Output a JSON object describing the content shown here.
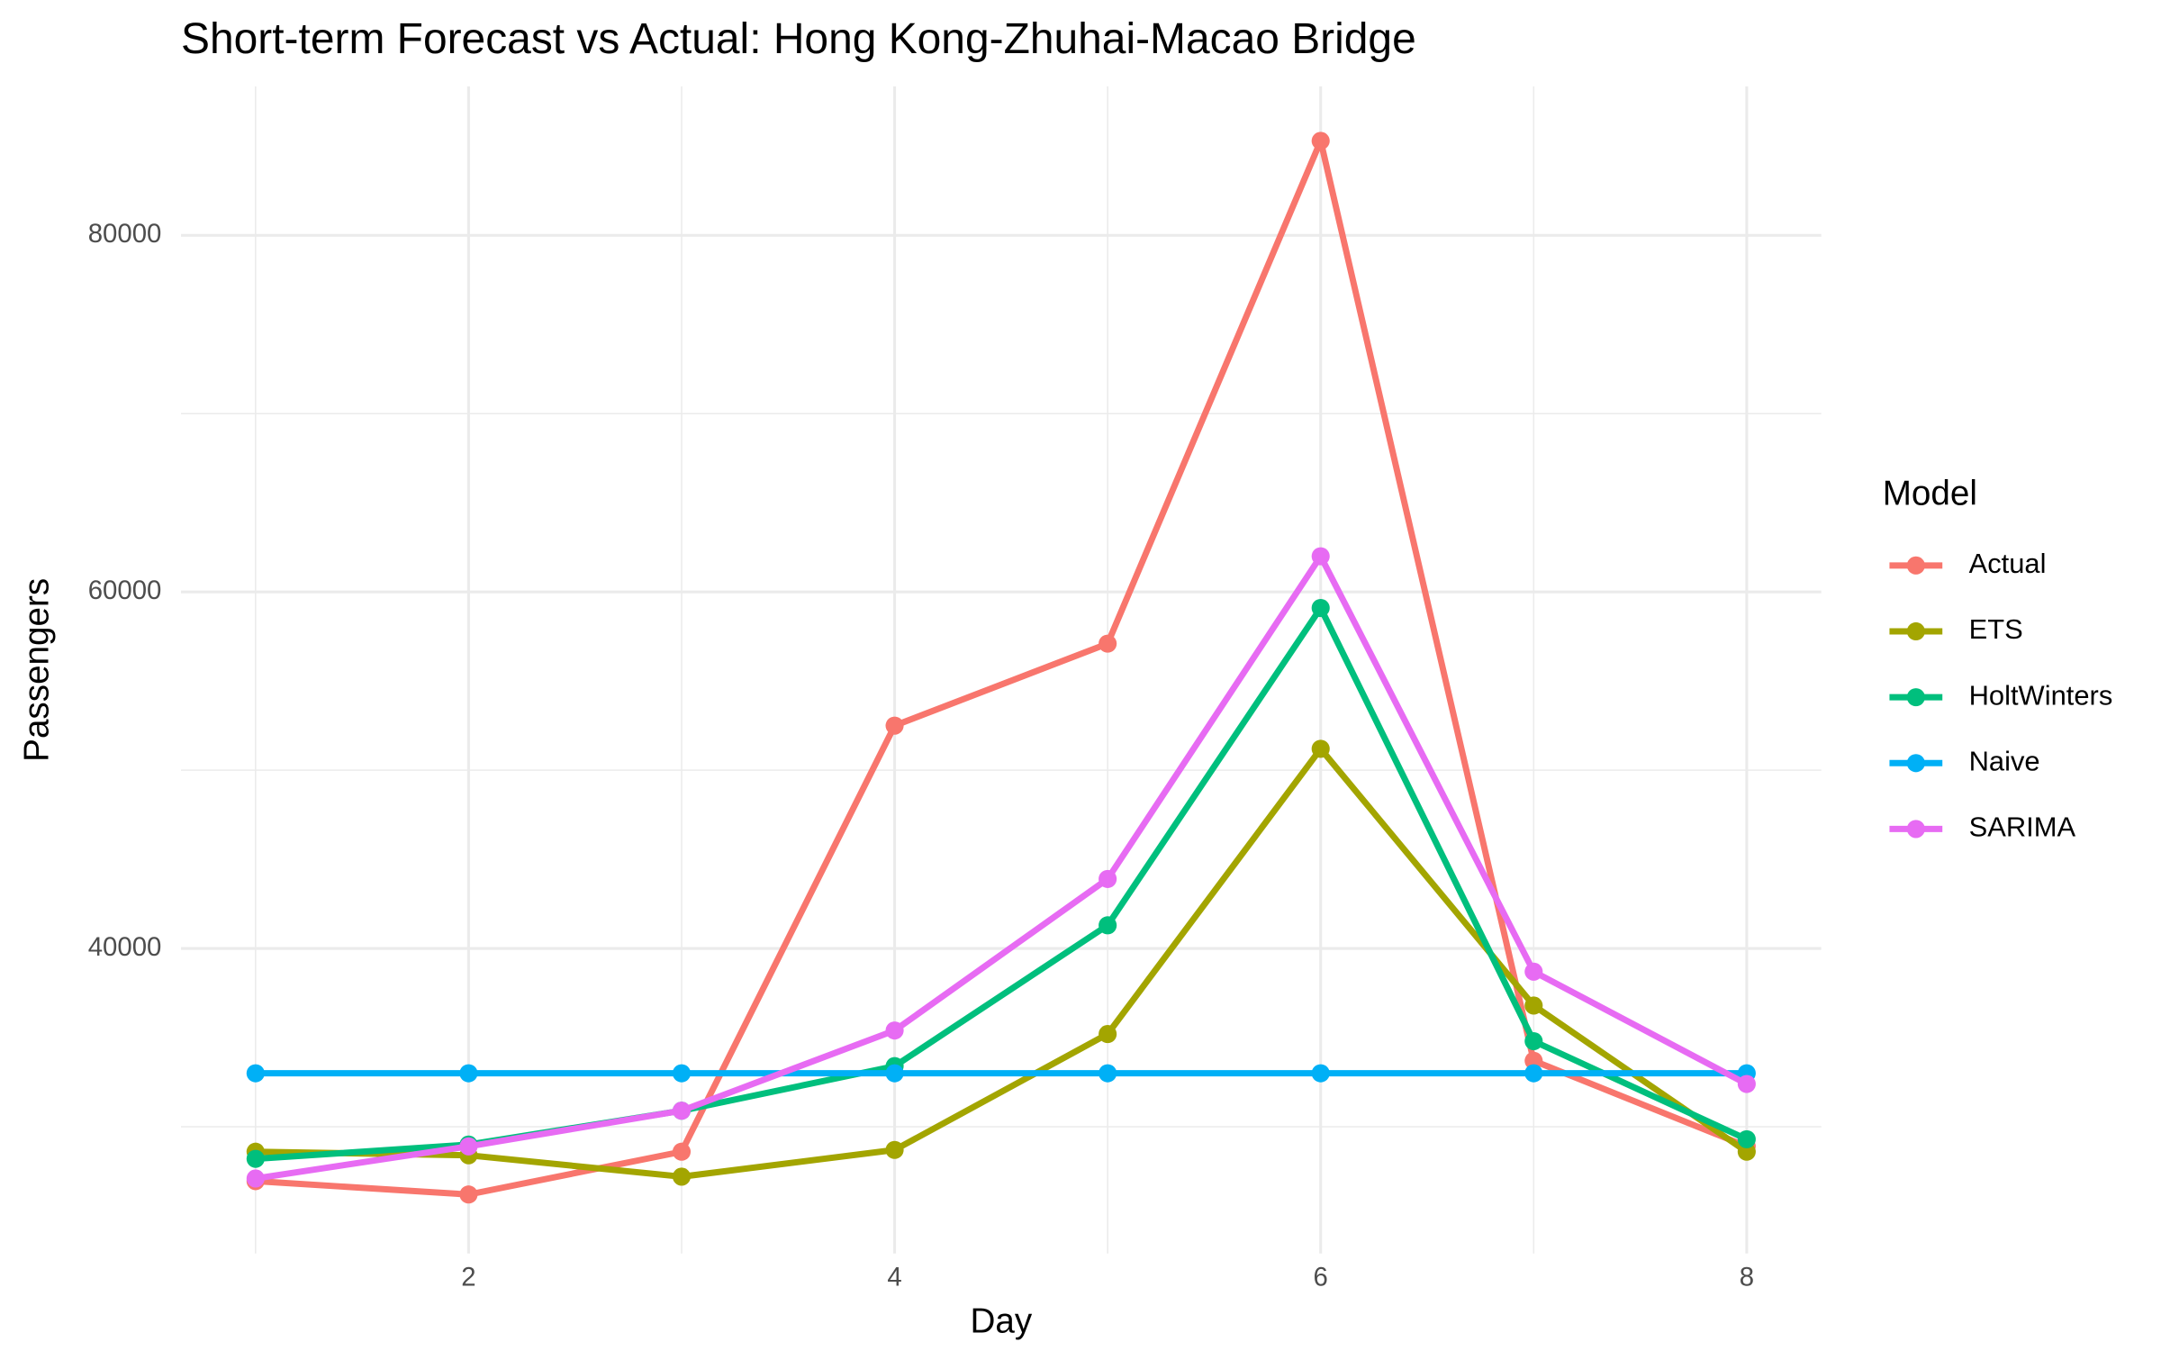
{
  "chart_data": {
    "type": "line",
    "title": "Short-term Forecast vs Actual: Hong Kong-Zhuhai-Macao Bridge",
    "x_label": "Day",
    "y_label": "Passengers",
    "legend_title": "Model",
    "x": [
      1,
      2,
      3,
      4,
      5,
      6,
      7,
      8
    ],
    "series": [
      {
        "name": "Actual",
        "color": "#F8766D",
        "values": [
          26950,
          26200,
          28600,
          52500,
          57100,
          85300,
          33700,
          28900
        ]
      },
      {
        "name": "ETS",
        "color": "#A3A500",
        "values": [
          28600,
          28400,
          27200,
          28700,
          35200,
          51200,
          36800,
          28600
        ]
      },
      {
        "name": "HoltWinters",
        "color": "#00BF7D",
        "values": [
          28200,
          29000,
          30900,
          33400,
          41300,
          59100,
          34800,
          29300
        ]
      },
      {
        "name": "Naive",
        "color": "#00B0F6",
        "values": [
          33000,
          33000,
          33000,
          33000,
          33000,
          33000,
          33000,
          33000
        ]
      },
      {
        "name": "SARIMA",
        "color": "#E76BF3",
        "values": [
          27100,
          28900,
          30900,
          35400,
          43900,
          62000,
          38700,
          32400
        ]
      }
    ],
    "xlim": [
      0.65,
      8.35
    ],
    "ylim": [
      22890,
      88360
    ],
    "xticks": [
      2,
      4,
      6,
      8
    ],
    "yticks": [
      40000,
      60000,
      80000
    ],
    "grid": true,
    "legend": "right"
  }
}
